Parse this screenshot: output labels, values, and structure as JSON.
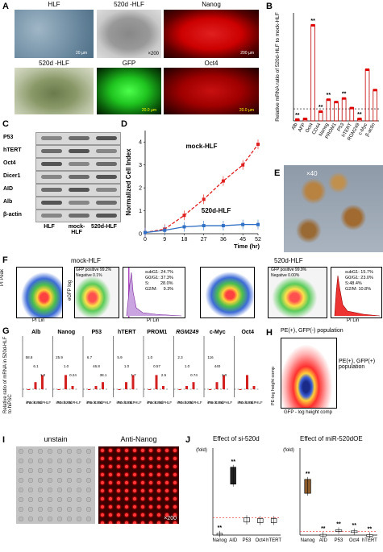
{
  "panels": {
    "A": {
      "label": "A",
      "top_captions": [
        "HLF",
        "520d -HLF",
        "Nanog"
      ],
      "bottom_captions": [
        "520d -HLF",
        "GFP",
        "Oct4"
      ],
      "magnification": "×200",
      "scale_bars": [
        "20 µm",
        "200 µm",
        "20.0 µm",
        "20.0 µm"
      ]
    },
    "B": {
      "label": "B",
      "ylabel": "Relative mRNA ratio of 520d-HLF to mock-HLF",
      "chart_data": {
        "type": "bar",
        "categories": [
          "Alb",
          "AFP",
          "Oct4",
          "CD44",
          "Nanog",
          "PROM1",
          "P53",
          "hTERT",
          "RGM249",
          "c-Myc",
          "β-actin"
        ],
        "values": [
          0.15,
          0.2,
          8.0,
          0.8,
          1.8,
          1.6,
          1.9,
          1.1,
          0.2,
          4.3,
          2.6
        ],
        "ylim": [
          0,
          9
        ],
        "reference_line": 1,
        "significance": [
          "**",
          "",
          "**",
          "**",
          "**",
          "",
          "**",
          "",
          "**",
          "",
          ""
        ]
      }
    },
    "C": {
      "label": "C",
      "rows": [
        "P53",
        "hTERT",
        "Oct4",
        "Dicer1",
        "AID",
        "Alb",
        "β-actin"
      ],
      "lanes": [
        "HLF",
        "mock-HLF",
        "520d-HLF"
      ]
    },
    "D": {
      "label": "D",
      "ylabel": "Normalized Cell Index",
      "xlabel": "Time (hr)",
      "chart_data": {
        "type": "line",
        "x": [
          0,
          9,
          18,
          27,
          36,
          45,
          52
        ],
        "series": [
          {
            "name": "mock-HLF",
            "values": [
              0.05,
              0.2,
              0.8,
              1.5,
              2.3,
              3.0,
              3.9
            ]
          },
          {
            "name": "520d-HLF",
            "values": [
              0.05,
              0.15,
              0.3,
              0.35,
              0.35,
              0.4,
              0.4
            ]
          }
        ],
        "ylim": [
          0,
          4.5
        ],
        "yticks": [
          0,
          1,
          2,
          3,
          4
        ],
        "xticks": [
          0,
          9,
          18,
          27,
          36,
          45,
          52
        ]
      }
    },
    "E": {
      "label": "E",
      "magnification": "×40"
    },
    "F": {
      "label": "F",
      "mock_title": "mock-HLF",
      "d520_title": "520d-HLF",
      "ylabels": [
        "PI Peak",
        "eGFP log"
      ],
      "xlabels": [
        "PI Lin",
        "PI Lin",
        "PI Lin"
      ],
      "mock_gfp": [
        "GFP positive 99.2%",
        "Negative 0.1%"
      ],
      "mock_cycle": [
        "subG1: 24.7%",
        "G0/G1: 37.3%",
        "S:         28.0%",
        "G2/M:     9.3%"
      ],
      "d520_gfp": [
        "GFP positive 99.9%",
        "Negative 0.00%"
      ],
      "d520_cycle": [
        "subG1: 15.7%",
        "G0/G1: 23.0%",
        "S:48.4%",
        "G2/M: 10.8%"
      ]
    },
    "G": {
      "label": "G",
      "ylabel": "Relative ratio of mRNA in 520d-HLF to hiPSC",
      "genes": [
        "Alb",
        "Nanog",
        "P53",
        "hTERT",
        "PROM1",
        "RGM249",
        "c-Myc",
        "Oct4"
      ],
      "values_text": [
        "58.8",
        "6.1",
        "1.0",
        "25.9",
        "1.0",
        "0.24",
        "6.7",
        "46.8",
        "38.1",
        "5.9",
        "1.0",
        "1.7",
        "1.0",
        "0.57",
        "2.5",
        "2.3",
        "1.0",
        "0.74",
        "116",
        "440",
        "1.0"
      ],
      "xcats": [
        "iPS",
        "mock -HLF",
        "520d -HLF"
      ]
    },
    "H": {
      "label": "H",
      "ann1": "PE(+), GFP(-) population",
      "ann2": "PE(+), GFP(+) population",
      "ylabel": "PE-log height comp",
      "xlabel": "GFP - log height comp"
    },
    "I": {
      "label": "I",
      "left_caption": "unstain",
      "right_caption": "Anti-Nanog",
      "magnification": "×200"
    },
    "J": {
      "label": "J",
      "left_title": "Effect of si-520d",
      "right_title": "Effect of miR-520dOE",
      "yunit": "(fold)",
      "chart_data": [
        {
          "type": "bar",
          "categories": [
            "Nanog",
            "AID",
            "P53",
            "Oct4",
            "hTERT"
          ],
          "values": [
            0.1,
            3.9,
            1.0,
            0.95,
            0.95
          ],
          "ylim": [
            0,
            5
          ],
          "significance": [
            "**",
            "**",
            "",
            "",
            ""
          ]
        },
        {
          "type": "bar",
          "categories": [
            "Nanog",
            "AID",
            "P53",
            "Oct4",
            "hTERT"
          ],
          "values": [
            16,
            0.2,
            1.5,
            1.2,
            0.1
          ],
          "ylim": [
            0,
            25
          ],
          "significance": [
            "**",
            "**",
            "**",
            "**",
            "**"
          ]
        }
      ]
    }
  }
}
